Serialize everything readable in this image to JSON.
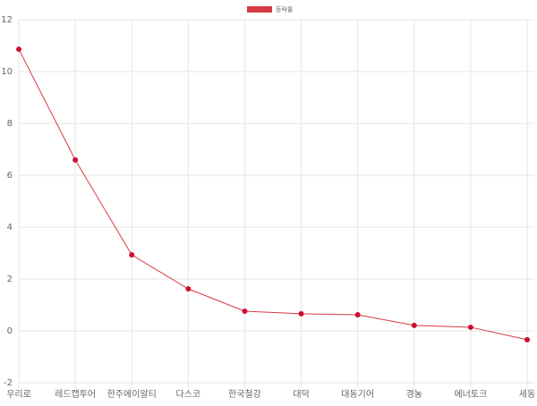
{
  "chart_data": {
    "type": "line",
    "categories": [
      "우리로",
      "레드캡투어",
      "한주에이알티",
      "다스코",
      "한국철강",
      "대덕",
      "대동기어",
      "경농",
      "에너토크",
      "세동"
    ],
    "series": [
      {
        "name": "등락률",
        "color": "#d63a45",
        "values": [
          10.86,
          6.59,
          2.93,
          1.62,
          0.76,
          0.66,
          0.62,
          0.21,
          0.14,
          -0.34
        ]
      }
    ],
    "ylim": [
      -2,
      12
    ],
    "yticks": [
      -2,
      0,
      2,
      4,
      6,
      8,
      10,
      12
    ],
    "grid": true,
    "legend": "top"
  }
}
